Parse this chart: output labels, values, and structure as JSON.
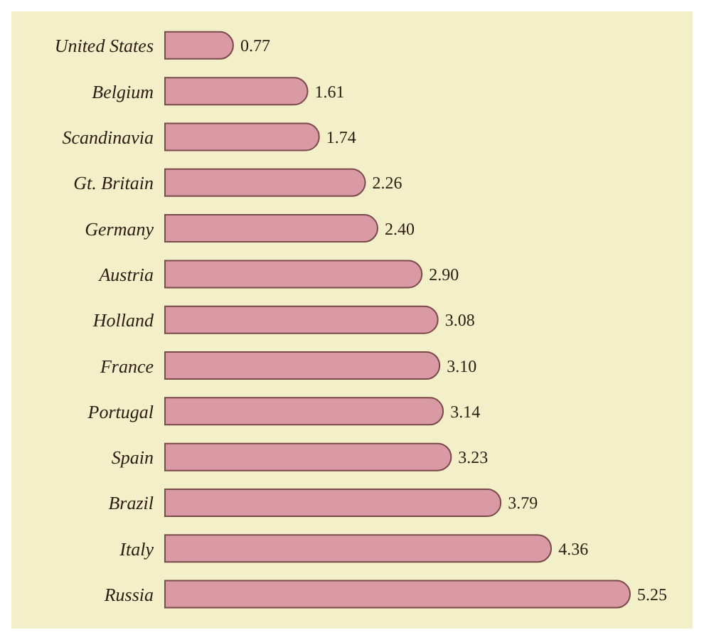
{
  "chart_data": {
    "type": "bar",
    "orientation": "horizontal",
    "categories": [
      "United States",
      "Belgium",
      "Scandinavia",
      "Gt. Britain",
      "Germany",
      "Austria",
      "Holland",
      "France",
      "Portugal",
      "Spain",
      "Brazil",
      "Italy",
      "Russia"
    ],
    "values": [
      0.77,
      1.61,
      1.74,
      2.26,
      2.4,
      2.9,
      3.08,
      3.1,
      3.14,
      3.23,
      3.79,
      4.36,
      5.25
    ],
    "value_labels": [
      "0.77",
      "1.61",
      "1.74",
      "2.26",
      "2.40",
      "2.90",
      "3.08",
      "3.10",
      "3.14",
      "3.23",
      "3.79",
      "4.36",
      "5.25"
    ],
    "color": "#d99aa6"
  }
}
